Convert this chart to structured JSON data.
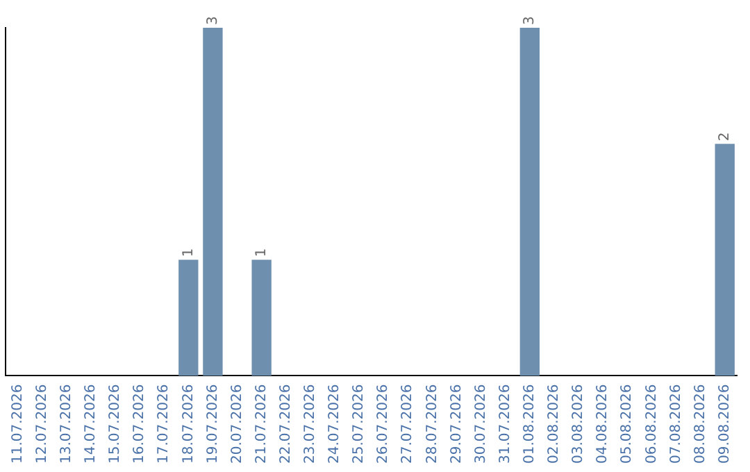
{
  "chart_data": {
    "type": "bar",
    "categories": [
      "11.07.2026",
      "12.07.2026",
      "13.07.2026",
      "14.07.2026",
      "15.07.2026",
      "16.07.2026",
      "17.07.2026",
      "18.07.2026",
      "19.07.2026",
      "20.07.2026",
      "21.07.2026",
      "22.07.2026",
      "23.07.2026",
      "24.07.2026",
      "25.07.2026",
      "26.07.2026",
      "27.07.2026",
      "28.07.2026",
      "29.07.2026",
      "30.07.2026",
      "31.07.2026",
      "01.08.2026",
      "02.08.2026",
      "03.08.2026",
      "04.08.2026",
      "05.08.2026",
      "06.08.2026",
      "07.08.2026",
      "08.08.2026",
      "09.08.2026"
    ],
    "values": [
      0,
      0,
      0,
      0,
      0,
      0,
      0,
      1,
      3,
      0,
      1,
      0,
      0,
      0,
      0,
      0,
      0,
      0,
      0,
      0,
      0,
      3,
      0,
      0,
      0,
      0,
      0,
      0,
      0,
      2
    ],
    "value_labels": [
      null,
      null,
      null,
      null,
      null,
      null,
      null,
      "1",
      "3",
      null,
      "1",
      null,
      null,
      null,
      null,
      null,
      null,
      null,
      null,
      null,
      null,
      "3",
      null,
      null,
      null,
      null,
      null,
      null,
      null,
      "2"
    ],
    "color": "#6e8fae",
    "grid": false,
    "legend": false
  }
}
